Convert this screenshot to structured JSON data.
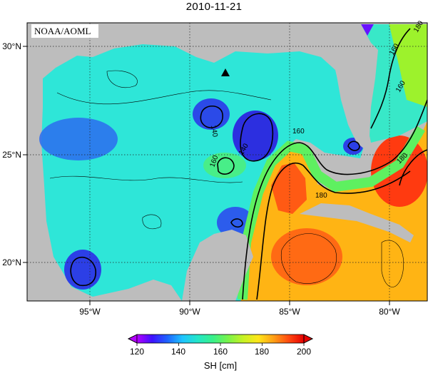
{
  "title": "2010-11-21",
  "credit": "NOAA/AOML",
  "map": {
    "variable": "SH",
    "unit": "cm",
    "lon_range": [
      -98,
      -78
    ],
    "lat_range": [
      18,
      31
    ],
    "lon_ticks": [
      "95°W",
      "90°W",
      "85°W",
      "80°W"
    ],
    "lat_ticks": [
      "30°N",
      "25°N",
      "20°N"
    ],
    "contour_labels": [
      "140",
      "160",
      "140",
      "160",
      "180",
      "160",
      "180",
      "180",
      "160"
    ],
    "marker": "triangle",
    "land_color": "#bdbdbd",
    "ocean_colors": {
      "low": "#2a35e8",
      "mid": "#24d9e0",
      "high": "#f42a0c"
    }
  },
  "colorbar": {
    "label": "SH [cm]",
    "ticks": [
      "120",
      "140",
      "160",
      "180",
      "200"
    ],
    "min": 120,
    "max": 200,
    "colors": [
      "#b400ff",
      "#3d12ff",
      "#1e63ff",
      "#1ec4ff",
      "#23e6c8",
      "#38f08a",
      "#78f34a",
      "#c6f224",
      "#ffe61a",
      "#ff9f16",
      "#ff4a10",
      "#e60000"
    ]
  }
}
